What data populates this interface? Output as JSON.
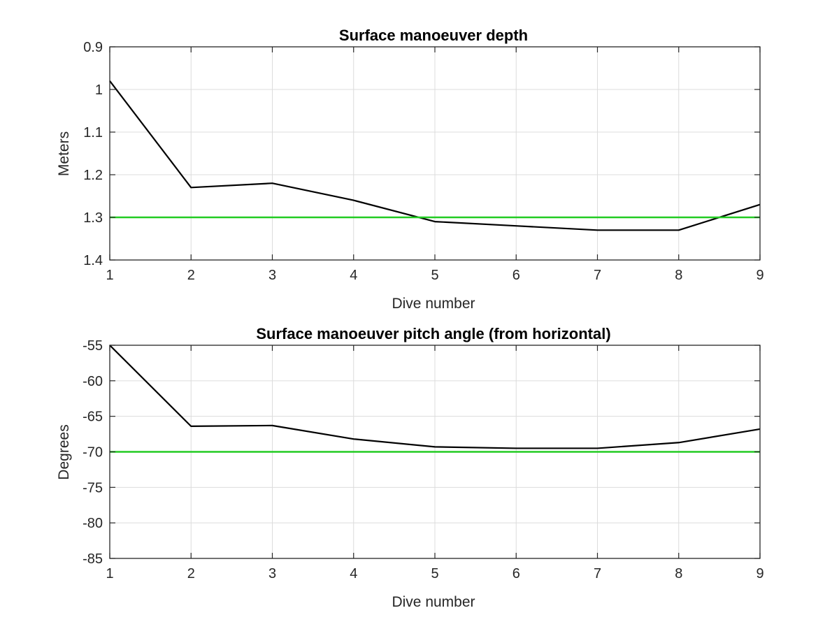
{
  "chart_data": [
    {
      "type": "line",
      "title": "Surface manoeuver depth",
      "xlabel": "Dive number",
      "ylabel": "Meters",
      "xlim": [
        1,
        9
      ],
      "ylim": [
        0.9,
        1.4
      ],
      "y_reversed": true,
      "grid": true,
      "x_ticks": [
        "1",
        "2",
        "3",
        "4",
        "5",
        "6",
        "7",
        "8",
        "9"
      ],
      "y_ticks": [
        "0.9",
        "1",
        "1.1",
        "1.2",
        "1.3",
        "1.4"
      ],
      "series": [
        {
          "color": "#000000",
          "x": [
            1,
            2,
            3,
            4,
            5,
            6,
            7,
            8,
            9
          ],
          "y": [
            0.98,
            1.23,
            1.22,
            1.26,
            1.31,
            1.32,
            1.33,
            1.33,
            1.27
          ]
        },
        {
          "color": "#22cc22",
          "x": [
            1,
            9
          ],
          "y": [
            1.3,
            1.3
          ]
        }
      ]
    },
    {
      "type": "line",
      "title": "Surface manoeuver pitch angle (from horizontal)",
      "xlabel": "Dive number",
      "ylabel": "Degrees",
      "xlim": [
        1,
        9
      ],
      "ylim": [
        -85,
        -55
      ],
      "y_reversed": false,
      "grid": true,
      "x_ticks": [
        "1",
        "2",
        "3",
        "4",
        "5",
        "6",
        "7",
        "8",
        "9"
      ],
      "y_ticks": [
        "-55",
        "-60",
        "-65",
        "-70",
        "-75",
        "-80",
        "-85"
      ],
      "series": [
        {
          "color": "#000000",
          "x": [
            1,
            2,
            3,
            4,
            5,
            6,
            7,
            8,
            9
          ],
          "y": [
            -55,
            -66.4,
            -66.3,
            -68.2,
            -69.3,
            -69.5,
            -69.5,
            -68.7,
            -66.8
          ]
        },
        {
          "color": "#22cc22",
          "x": [
            1,
            9
          ],
          "y": [
            -70,
            -70
          ]
        }
      ]
    }
  ]
}
